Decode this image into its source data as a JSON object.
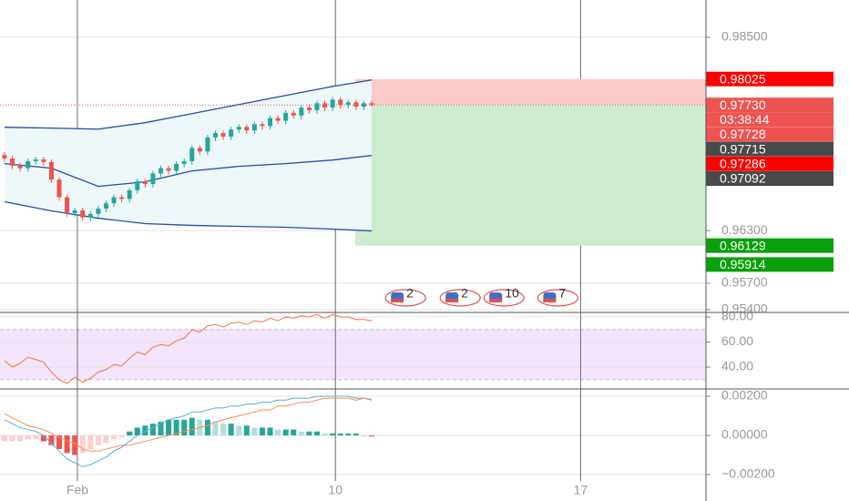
{
  "chart_data": [
    {
      "type": "candlestick",
      "x": [
        0,
        1,
        2,
        3,
        4,
        5,
        6,
        7,
        8,
        9,
        10,
        11,
        12,
        13,
        14,
        15,
        16,
        17,
        18,
        19,
        20,
        21,
        22,
        23,
        24,
        25,
        26,
        27,
        28,
        29,
        30,
        31,
        32,
        33,
        34,
        35,
        36,
        37,
        38,
        39,
        40,
        41,
        42,
        43,
        44,
        45,
        46,
        47
      ],
      "open": [
        0.9716,
        0.9712,
        0.9704,
        0.9701,
        0.9709,
        0.9711,
        0.9708,
        0.9688,
        0.9668,
        0.965,
        0.9653,
        0.9645,
        0.9649,
        0.9655,
        0.9661,
        0.9668,
        0.9666,
        0.9676,
        0.9686,
        0.9683,
        0.9695,
        0.9701,
        0.9698,
        0.9706,
        0.9709,
        0.9724,
        0.972,
        0.9736,
        0.9741,
        0.9737,
        0.9745,
        0.9748,
        0.9744,
        0.9751,
        0.9749,
        0.9758,
        0.9755,
        0.9764,
        0.9761,
        0.977,
        0.9767,
        0.9775,
        0.977,
        0.9779,
        0.9773,
        0.9776,
        0.9771,
        0.9775
      ],
      "high": [
        0.9719,
        0.9715,
        0.9707,
        0.9712,
        0.9714,
        0.9714,
        0.9711,
        0.9691,
        0.9671,
        0.9656,
        0.9656,
        0.9652,
        0.9658,
        0.9664,
        0.9671,
        0.9671,
        0.9679,
        0.9689,
        0.9689,
        0.9698,
        0.9704,
        0.9704,
        0.9709,
        0.9712,
        0.9727,
        0.9727,
        0.9739,
        0.9744,
        0.9744,
        0.9748,
        0.9751,
        0.9751,
        0.9754,
        0.9754,
        0.9761,
        0.9761,
        0.9767,
        0.9767,
        0.9773,
        0.9773,
        0.9778,
        0.9778,
        0.9782,
        0.9782,
        0.9779,
        0.9779,
        0.9778,
        0.9778
      ],
      "low": [
        0.9708,
        0.97,
        0.9697,
        0.9697,
        0.9705,
        0.9704,
        0.9684,
        0.9664,
        0.9646,
        0.9646,
        0.9641,
        0.9641,
        0.9645,
        0.9651,
        0.9657,
        0.9662,
        0.9662,
        0.9672,
        0.9679,
        0.9679,
        0.9691,
        0.9694,
        0.9694,
        0.9702,
        0.9705,
        0.9716,
        0.9716,
        0.9732,
        0.9733,
        0.9733,
        0.9741,
        0.974,
        0.974,
        0.9745,
        0.9745,
        0.9751,
        0.9751,
        0.9757,
        0.9757,
        0.9763,
        0.9763,
        0.9766,
        0.9766,
        0.9769,
        0.9769,
        0.9767,
        0.9767,
        0.9771
      ],
      "close": [
        0.9712,
        0.9704,
        0.9701,
        0.9709,
        0.9711,
        0.9708,
        0.9688,
        0.9668,
        0.965,
        0.9653,
        0.9645,
        0.9649,
        0.9655,
        0.9661,
        0.9668,
        0.9666,
        0.9676,
        0.9686,
        0.9683,
        0.9695,
        0.9701,
        0.9698,
        0.9706,
        0.9709,
        0.9724,
        0.972,
        0.9736,
        0.9741,
        0.9737,
        0.9745,
        0.9748,
        0.9744,
        0.9751,
        0.9749,
        0.9758,
        0.9755,
        0.9764,
        0.9761,
        0.977,
        0.9767,
        0.9775,
        0.977,
        0.9779,
        0.9773,
        0.9776,
        0.9771,
        0.9775,
        0.9773
      ],
      "up_color": "#26a69a",
      "down_color": "#ef5350",
      "xlim": [
        -0.58,
        89.8
      ],
      "xticks": [
        {
          "value": 9.33,
          "label": "Feb"
        },
        {
          "value": 42.36,
          "label": "10"
        },
        {
          "value": 73.75,
          "label": "17"
        }
      ],
      "ylim": [
        0.95379,
        0.98924
      ],
      "yticks": [
        {
          "value": 0.985,
          "label": "0.98500"
        },
        {
          "value": 0.963,
          "label": "0.96300"
        },
        {
          "value": 0.957,
          "label": "0.95700"
        },
        {
          "value": 0.954,
          "label": "0.95400"
        }
      ],
      "grid": true,
      "bands": {
        "x": [
          0,
          6,
          12,
          18,
          24,
          30,
          36,
          42,
          47
        ],
        "upper": [
          0.97476,
          0.97466,
          0.97455,
          0.97528,
          0.97631,
          0.97735,
          0.97838,
          0.97941,
          0.98014
        ],
        "middle": [
          0.97062,
          0.9701,
          0.96803,
          0.96855,
          0.96979,
          0.97031,
          0.97062,
          0.97103,
          0.97155
        ],
        "lower": [
          0.96628,
          0.96524,
          0.96441,
          0.96379,
          0.96359,
          0.96348,
          0.96338,
          0.96317,
          0.96297
        ],
        "color": "#1e4fa8",
        "fill": "#eef7f9"
      },
      "price_labels": [
        {
          "value": 0.98025,
          "label": "0.98025",
          "color": "#ff0000"
        },
        {
          "value": 0.9773,
          "label": "0.97730",
          "color": "#ef5350"
        },
        {
          "label": "03:38:44",
          "color": "#ef5350"
        },
        {
          "value": 0.97728,
          "label": "0.97728",
          "color": "#ef5350"
        },
        {
          "value": 0.97715,
          "label": "0.97715",
          "color": "#4a4a4a"
        },
        {
          "value": 0.97286,
          "label": "0.97286",
          "color": "#ff0000"
        },
        {
          "value": 0.97092,
          "label": "0.97092",
          "color": "#4a4a4a"
        },
        {
          "value": 0.96129,
          "label": "0.96129",
          "color": "#09a00c"
        },
        {
          "value": 0.95914,
          "label": "0.95914",
          "color": "#09a00c"
        }
      ],
      "position": {
        "start": 44.9,
        "stop_fill": "#fbcaca",
        "target_fill": "#cdebcf"
      },
      "events": [
        {
          "x": 50.4,
          "label": "2"
        },
        {
          "x": 57.4,
          "label": "2"
        },
        {
          "x": 63.0,
          "label": "10"
        },
        {
          "x": 69.9,
          "label": "7"
        }
      ]
    },
    {
      "type": "line",
      "values": [
        45,
        40,
        43,
        48,
        46,
        44,
        36,
        30,
        27,
        32,
        28,
        31,
        36,
        38,
        42,
        41,
        47,
        52,
        50,
        56,
        58,
        57,
        61,
        63,
        70,
        68,
        73,
        74,
        72,
        75,
        76,
        74,
        77,
        76,
        79,
        77,
        80,
        79,
        81,
        80,
        82,
        79,
        82,
        80,
        80,
        78,
        78,
        77
      ],
      "color": "#ff7043",
      "ylim": [
        24,
        82.2
      ],
      "yticks": [
        {
          "value": 80,
          "label": "80.00"
        },
        {
          "value": 60,
          "label": "60.00"
        },
        {
          "value": 40,
          "label": "40.00"
        }
      ],
      "band": [
        30,
        70
      ],
      "band_color": "#f3e5fb"
    },
    {
      "type": "macd",
      "histogram": [
        -0.0003,
        -0.0003,
        -0.0003,
        -0.0002,
        -0.0002,
        -0.0003,
        -0.0005,
        -0.0007,
        -0.0009,
        -0.001,
        -0.0009,
        -0.0007,
        -0.0005,
        -0.0004,
        -0.0002,
        -0.0001,
        0.0002,
        0.0004,
        0.0005,
        0.0006,
        0.0007,
        0.0008,
        0.0008,
        0.0008,
        0.0009,
        0.0008,
        0.0008,
        0.0007,
        0.0006,
        0.0006,
        0.0005,
        0.0005,
        0.0004,
        0.0004,
        0.0004,
        0.0003,
        0.0003,
        0.0003,
        0.0002,
        0.0002,
        0.0002,
        0.0001,
        0.0001,
        0.0001,
        0.0001,
        0.0001,
        0.0,
        -5e-05
      ],
      "macd": [
        0.0008,
        0.0006,
        0.0004,
        0.0003,
        0.0002,
        0.0,
        -0.0004,
        -0.0008,
        -0.0012,
        -0.0014,
        -0.0016,
        -0.0015,
        -0.0013,
        -0.0011,
        -0.0008,
        -0.0006,
        -0.0003,
        0.0,
        0.0002,
        0.0004,
        0.0006,
        0.0008,
        0.0009,
        0.001,
        0.0012,
        0.0012,
        0.0013,
        0.0014,
        0.0014,
        0.0015,
        0.0015,
        0.0016,
        0.0016,
        0.0017,
        0.0017,
        0.0018,
        0.0018,
        0.0019,
        0.0019,
        0.0019,
        0.002,
        0.002,
        0.002,
        0.002,
        0.002,
        0.0019,
        0.0019,
        0.0018
      ],
      "signal": [
        0.0011,
        0.0009,
        0.0007,
        0.0005,
        0.0004,
        0.0003,
        0.0001,
        -0.0001,
        -0.0003,
        -0.0004,
        -0.0007,
        -0.0008,
        -0.0008,
        -0.0007,
        -0.0006,
        -0.0005,
        -0.0005,
        -0.0004,
        -0.0003,
        -0.0002,
        -0.0001,
        0.0,
        0.0001,
        0.0002,
        0.0003,
        0.0004,
        0.0005,
        0.0007,
        0.0008,
        0.0009,
        0.001,
        0.0011,
        0.0012,
        0.0013,
        0.0013,
        0.0015,
        0.0015,
        0.0016,
        0.0017,
        0.0017,
        0.0018,
        0.0019,
        0.0019,
        0.0019,
        0.0019,
        0.0018,
        0.0019,
        0.00185
      ],
      "macd_color": "#4fb3d9",
      "signal_color": "#ff8a50",
      "hist_colors": {
        "pos_rising": "#26a69a",
        "pos_falling": "#b2dfdb",
        "neg_falling": "#ef5350",
        "neg_rising": "#ffcdd2"
      },
      "ylim": [
        -0.002884,
        0.002326
      ],
      "yticks": [
        {
          "value": 0.002,
          "label": "0.00200"
        },
        {
          "value": 0,
          "label": "0.00000"
        },
        {
          "value": -0.002,
          "label": "−0.00200"
        }
      ]
    }
  ]
}
